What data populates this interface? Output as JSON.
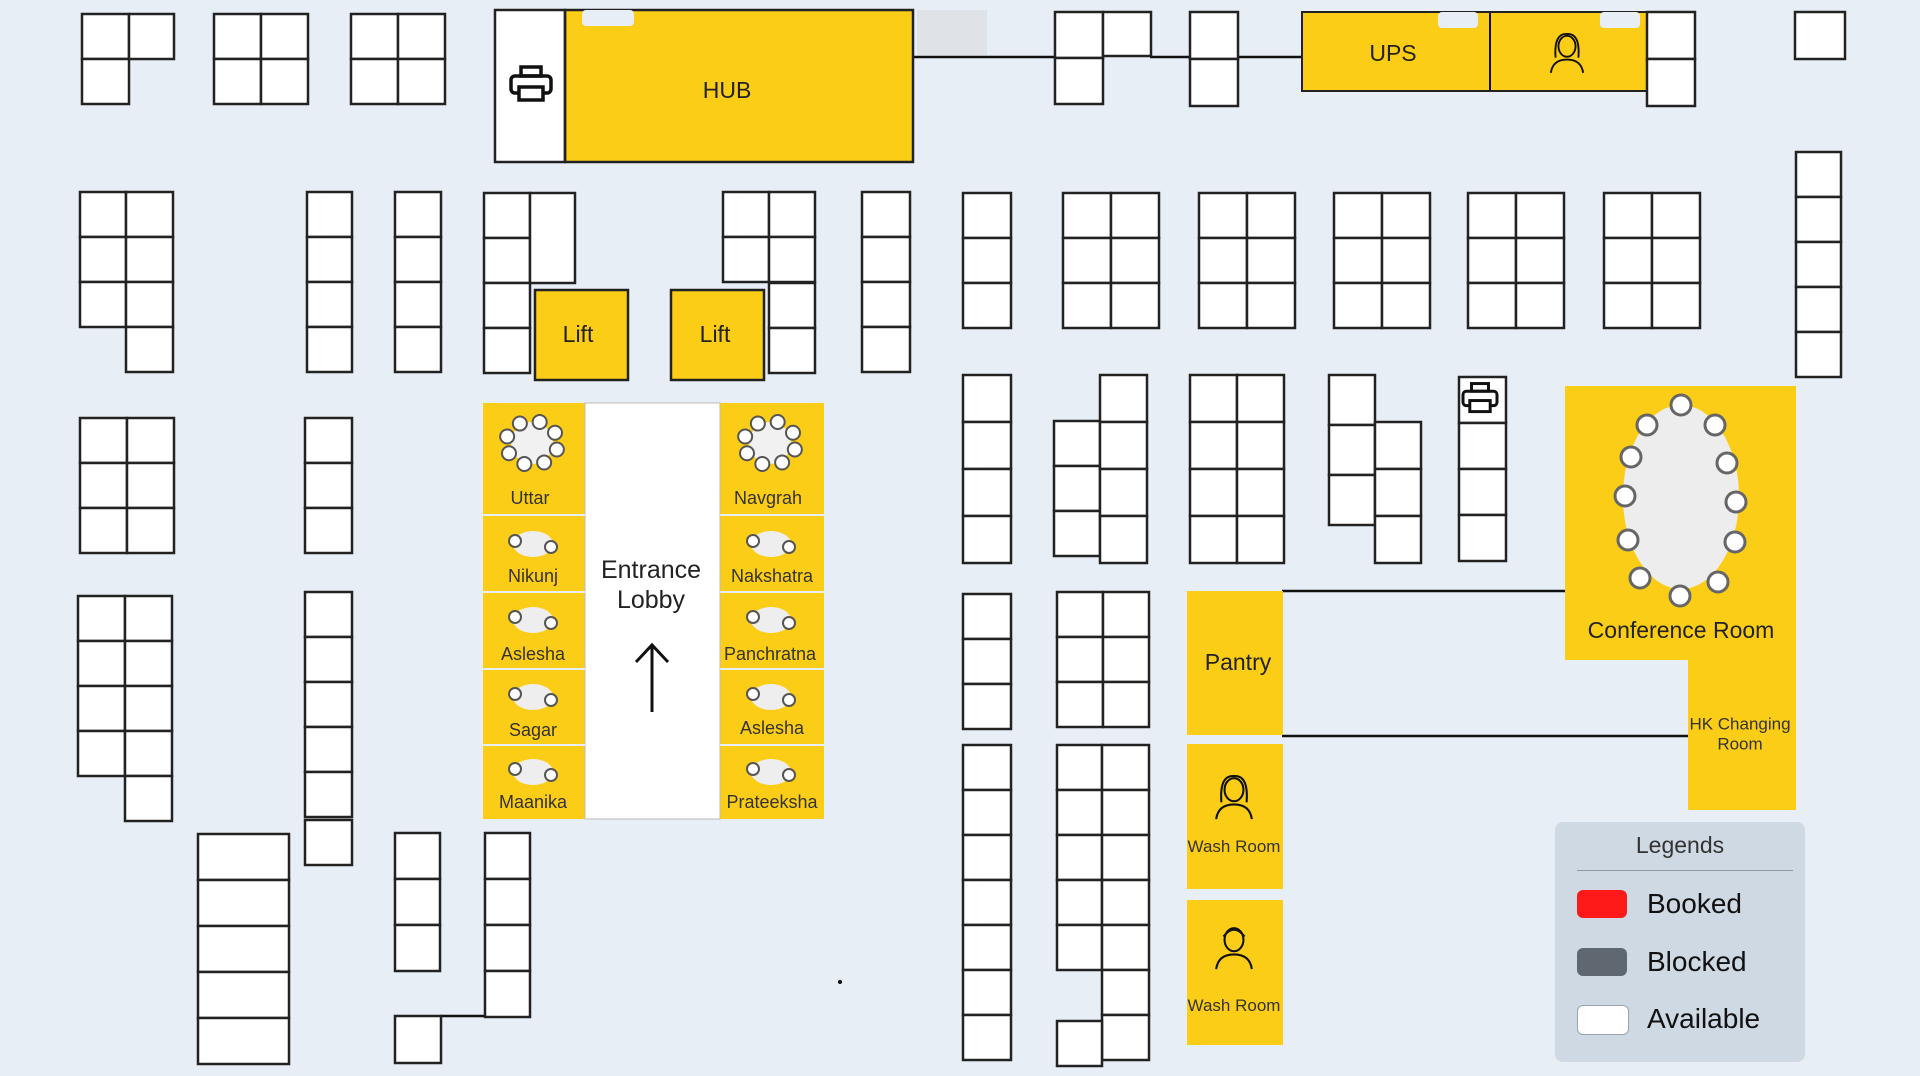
{
  "rooms": {
    "hub": "HUB",
    "ups": "UPS",
    "lift_1": "Lift",
    "lift_2": "Lift",
    "entrance_lobby": "Entrance Lobby",
    "conference_room": "Conference Room",
    "pantry": "Pantry",
    "hk_changing_room": "HK Changing Room",
    "wash_room_1": "Wash Room",
    "wash_room_2": "Wash Room"
  },
  "meeting_rooms_left": [
    "Uttar",
    "Nikunj",
    "Aslesha",
    "Sagar",
    "Maanika"
  ],
  "meeting_rooms_right": [
    "Navgrah",
    "Nakshatra",
    "Panchratna",
    "Aslesha",
    "Prateeksha"
  ],
  "legend": {
    "title": "Legends",
    "items": [
      {
        "label": "Booked",
        "color": "#ff1a1a"
      },
      {
        "label": "Blocked",
        "color": "#5f6770"
      },
      {
        "label": "Available",
        "color": "#ffffff"
      }
    ]
  },
  "colors": {
    "background": "#e7eef5",
    "room_fill": "#fccd16",
    "desk_fill": "#ffffff",
    "desk_stroke": "#222222"
  },
  "icons": [
    "printer-icon",
    "female-person-icon",
    "male-person-icon",
    "up-arrow-icon",
    "round-table-icon",
    "oval-table-icon"
  ]
}
